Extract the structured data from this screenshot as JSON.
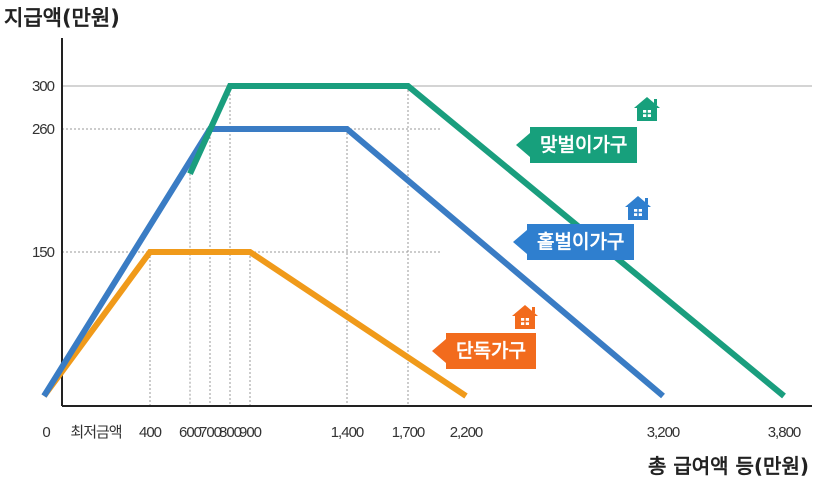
{
  "chart_data": {
    "type": "line",
    "ylabel": "지급액(만원)",
    "xlabel": "총 급여액 등(만원)",
    "y_ticks": [
      {
        "value": 150,
        "label": "150"
      },
      {
        "value": 260,
        "label": "260"
      },
      {
        "value": 300,
        "label": "300"
      }
    ],
    "x_ticks": [
      {
        "value": 0,
        "label": "0"
      },
      {
        "value": 200,
        "label": "최저금액"
      },
      {
        "value": 400,
        "label": "400"
      },
      {
        "value": 600,
        "label": "600"
      },
      {
        "value": 700,
        "label": "700"
      },
      {
        "value": 800,
        "label": "800"
      },
      {
        "value": 900,
        "label": "900"
      },
      {
        "value": 1400,
        "label": "1,400"
      },
      {
        "value": 1700,
        "label": "1,700"
      },
      {
        "value": 2200,
        "label": "2,200"
      },
      {
        "value": 3200,
        "label": "3,200"
      },
      {
        "value": 3800,
        "label": "3,800"
      }
    ],
    "series": [
      {
        "name": "맞벌이가구",
        "color": "#1a9e7e",
        "points": [
          [
            600,
            220
          ],
          [
            800,
            300
          ],
          [
            1700,
            300
          ],
          [
            3800,
            0
          ]
        ]
      },
      {
        "name": "홑벌이가구",
        "color": "#3a7cc4",
        "points": [
          [
            0,
            0
          ],
          [
            700,
            260
          ],
          [
            1400,
            260
          ],
          [
            3200,
            0
          ]
        ]
      },
      {
        "name": "단독가구",
        "color": "#f09a1a",
        "points": [
          [
            0,
            0
          ],
          [
            400,
            150
          ],
          [
            900,
            150
          ],
          [
            2200,
            0
          ]
        ]
      }
    ],
    "legend": [
      {
        "label": "맞벌이가구",
        "color": "#17a07c"
      },
      {
        "label": "홑벌이가구",
        "color": "#2f7fcf"
      },
      {
        "label": "단독가구",
        "color": "#f26b1d"
      }
    ]
  }
}
